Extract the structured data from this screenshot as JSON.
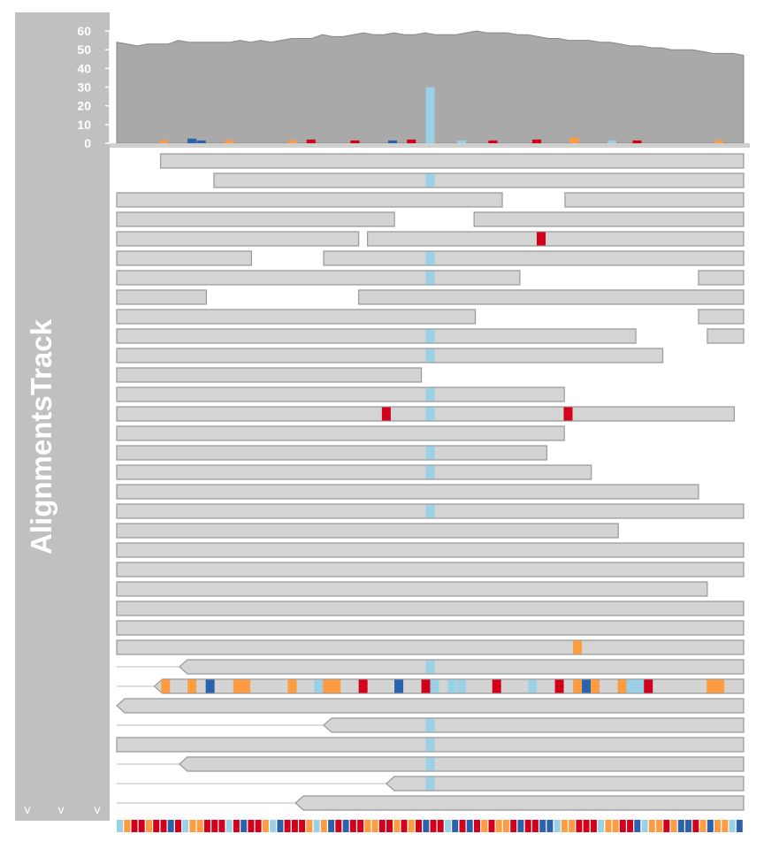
{
  "track_title": "AlignmentsTrack",
  "chevrons": [
    "v",
    "v",
    "v"
  ],
  "colors": {
    "A": "#ff9c41",
    "C": "#2a62ab",
    "G": "#ffa347",
    "T": "#d3001b",
    "mm_light": "#9bd1e6",
    "read_fill": "#d4d4d4",
    "read_stroke": "#999999",
    "coverage": "#a9a9a9",
    "panel": "#c0c0c0"
  },
  "chart_data": {
    "type": "area",
    "title": "",
    "xlabel": "",
    "ylabel": "",
    "ylim": [
      0,
      60
    ],
    "yticks": [
      0,
      10,
      20,
      30,
      40,
      50,
      60
    ],
    "coverage": [
      54,
      53,
      52,
      53,
      53,
      53,
      55,
      54,
      54,
      54,
      54,
      54,
      55,
      54,
      55,
      54,
      55,
      56,
      56,
      56,
      58,
      57,
      57,
      58,
      59,
      58,
      58,
      59,
      58,
      58,
      59,
      58,
      58,
      58,
      59,
      60,
      59,
      59,
      59,
      58,
      58,
      57,
      56,
      56,
      55,
      55,
      55,
      54,
      54,
      53,
      52,
      52,
      51,
      51,
      50,
      50,
      50,
      49,
      48,
      48,
      48,
      47
    ],
    "mismatch_bars": [
      {
        "pos": 0.075,
        "h": 1.5,
        "c": "A"
      },
      {
        "pos": 0.12,
        "h": 2.5,
        "c": "C"
      },
      {
        "pos": 0.135,
        "h": 1.5,
        "c": "C"
      },
      {
        "pos": 0.18,
        "h": 1.5,
        "c": "A"
      },
      {
        "pos": 0.28,
        "h": 1.5,
        "c": "A"
      },
      {
        "pos": 0.31,
        "h": 2,
        "c": "T"
      },
      {
        "pos": 0.38,
        "h": 1.5,
        "c": "T"
      },
      {
        "pos": 0.44,
        "h": 1.5,
        "c": "C"
      },
      {
        "pos": 0.47,
        "h": 2,
        "c": "T"
      },
      {
        "pos": 0.5,
        "h": 30,
        "c": "mm_light"
      },
      {
        "pos": 0.55,
        "h": 1.5,
        "c": "mm_light"
      },
      {
        "pos": 0.6,
        "h": 1.5,
        "c": "T"
      },
      {
        "pos": 0.67,
        "h": 2,
        "c": "T"
      },
      {
        "pos": 0.73,
        "h": 3,
        "c": "A"
      },
      {
        "pos": 0.79,
        "h": 1.5,
        "c": "mm_light"
      },
      {
        "pos": 0.83,
        "h": 1.5,
        "c": "T"
      },
      {
        "pos": 0.96,
        "h": 1.5,
        "c": "A"
      }
    ],
    "reads": [
      {
        "row": 0,
        "x1": 0.07,
        "x2": 1.0,
        "mm": []
      },
      {
        "row": 1,
        "x1": 0.155,
        "x2": 1.0,
        "mm": [
          {
            "p": 0.5,
            "c": "mm_light"
          }
        ]
      },
      {
        "row": 2,
        "x1": 0.0,
        "x2": 0.615,
        "mm": []
      },
      {
        "row": 2,
        "x1": 0.715,
        "x2": 1.0,
        "mm": []
      },
      {
        "row": 3,
        "x1": 0.0,
        "x2": 0.443,
        "mm": []
      },
      {
        "row": 3,
        "x1": 0.57,
        "x2": 1.0,
        "mm": []
      },
      {
        "row": 4,
        "x1": 0.0,
        "x2": 0.386,
        "mm": []
      },
      {
        "row": 4,
        "x1": 0.4,
        "x2": 1.0,
        "mm": [
          {
            "p": 0.677,
            "c": "T"
          }
        ]
      },
      {
        "row": 5,
        "x1": 0.0,
        "x2": 0.215,
        "mm": []
      },
      {
        "row": 5,
        "x1": 0.33,
        "x2": 1.0,
        "mm": [
          {
            "p": 0.5,
            "c": "mm_light"
          }
        ]
      },
      {
        "row": 6,
        "x1": 0.0,
        "x2": 0.643,
        "mm": [
          {
            "p": 0.5,
            "c": "mm_light"
          }
        ]
      },
      {
        "row": 6,
        "x1": 0.928,
        "x2": 1.0,
        "mm": []
      },
      {
        "row": 7,
        "x1": 0.0,
        "x2": 0.143,
        "mm": []
      },
      {
        "row": 7,
        "x1": 0.386,
        "x2": 1.0,
        "mm": []
      },
      {
        "row": 8,
        "x1": 0.0,
        "x2": 0.572,
        "mm": []
      },
      {
        "row": 8,
        "x1": 0.928,
        "x2": 1.0,
        "mm": []
      },
      {
        "row": 9,
        "x1": 0.0,
        "x2": 0.828,
        "mm": [
          {
            "p": 0.5,
            "c": "mm_light"
          }
        ]
      },
      {
        "row": 9,
        "x1": 0.942,
        "x2": 1.0,
        "mm": []
      },
      {
        "row": 10,
        "x1": 0.0,
        "x2": 0.871,
        "mm": [
          {
            "p": 0.5,
            "c": "mm_light"
          }
        ]
      },
      {
        "row": 11,
        "x1": 0.0,
        "x2": 0.486,
        "mm": []
      },
      {
        "row": 12,
        "x1": 0.0,
        "x2": 0.714,
        "mm": [
          {
            "p": 0.5,
            "c": "mm_light"
          }
        ]
      },
      {
        "row": 13,
        "x1": 0.0,
        "x2": 0.985,
        "mm": [
          {
            "p": 0.43,
            "c": "T"
          },
          {
            "p": 0.5,
            "c": "mm_light"
          },
          {
            "p": 0.72,
            "c": "T"
          }
        ]
      },
      {
        "row": 14,
        "x1": 0.0,
        "x2": 0.714,
        "mm": []
      },
      {
        "row": 15,
        "x1": 0.0,
        "x2": 0.686,
        "mm": [
          {
            "p": 0.5,
            "c": "mm_light"
          }
        ]
      },
      {
        "row": 16,
        "x1": 0.0,
        "x2": 0.757,
        "mm": [
          {
            "p": 0.5,
            "c": "mm_light"
          }
        ]
      },
      {
        "row": 17,
        "x1": 0.0,
        "x2": 0.928,
        "mm": []
      },
      {
        "row": 18,
        "x1": 0.0,
        "x2": 1.0,
        "mm": [
          {
            "p": 0.5,
            "c": "mm_light"
          }
        ]
      },
      {
        "row": 19,
        "x1": 0.0,
        "x2": 0.8,
        "mm": []
      },
      {
        "row": 20,
        "x1": 0.0,
        "x2": 1.0,
        "mm": []
      },
      {
        "row": 21,
        "x1": 0.0,
        "x2": 1.0,
        "mm": []
      },
      {
        "row": 22,
        "x1": 0.0,
        "x2": 0.942,
        "mm": []
      },
      {
        "row": 23,
        "x1": 0.0,
        "x2": 1.0,
        "mm": []
      },
      {
        "row": 24,
        "x1": 0.0,
        "x2": 1.0,
        "mm": []
      },
      {
        "row": 25,
        "x1": 0.0,
        "x2": 1.0,
        "mm": [
          {
            "p": 0.735,
            "c": "A"
          }
        ]
      },
      {
        "row": 26,
        "x1": 0.1,
        "x2": 1.0,
        "dir": "left",
        "tail": 0.0,
        "mm": [
          {
            "p": 0.5,
            "c": "mm_light"
          }
        ]
      },
      {
        "row": 27,
        "x1": 0.06,
        "x2": 1.0,
        "dir": "left",
        "tail": 0.0,
        "mm": [
          {
            "p": 0.078,
            "c": "A"
          },
          {
            "p": 0.12,
            "c": "A"
          },
          {
            "p": 0.149,
            "c": "C"
          },
          {
            "p": 0.193,
            "c": "A"
          },
          {
            "p": 0.206,
            "c": "A"
          },
          {
            "p": 0.28,
            "c": "A"
          },
          {
            "p": 0.322,
            "c": "mm_light"
          },
          {
            "p": 0.336,
            "c": "A"
          },
          {
            "p": 0.35,
            "c": "A"
          },
          {
            "p": 0.393,
            "c": "T"
          },
          {
            "p": 0.45,
            "c": "C"
          },
          {
            "p": 0.493,
            "c": "T"
          },
          {
            "p": 0.507,
            "c": "mm_light"
          },
          {
            "p": 0.535,
            "c": "mm_light"
          },
          {
            "p": 0.55,
            "c": "mm_light"
          },
          {
            "p": 0.606,
            "c": "T"
          },
          {
            "p": 0.663,
            "c": "mm_light"
          },
          {
            "p": 0.706,
            "c": "T"
          },
          {
            "p": 0.735,
            "c": "A"
          },
          {
            "p": 0.749,
            "c": "C"
          },
          {
            "p": 0.763,
            "c": "A"
          },
          {
            "p": 0.806,
            "c": "A"
          },
          {
            "p": 0.82,
            "c": "mm_light"
          },
          {
            "p": 0.834,
            "c": "mm_light"
          },
          {
            "p": 0.848,
            "c": "T"
          },
          {
            "p": 0.948,
            "c": "A"
          },
          {
            "p": 0.962,
            "c": "A"
          }
        ]
      },
      {
        "row": 28,
        "x1": 0.0,
        "x2": 1.0,
        "dir": "left",
        "mm": []
      },
      {
        "row": 29,
        "x1": 0.33,
        "x2": 1.0,
        "dir": "left",
        "tail": 0.0,
        "mm": [
          {
            "p": 0.5,
            "c": "mm_light"
          }
        ]
      },
      {
        "row": 30,
        "x1": 0.0,
        "x2": 1.0,
        "mm": [
          {
            "p": 0.5,
            "c": "mm_light"
          }
        ]
      },
      {
        "row": 31,
        "x1": 0.1,
        "x2": 1.0,
        "dir": "left",
        "tail": 0.0,
        "mm": [
          {
            "p": 0.5,
            "c": "mm_light"
          }
        ]
      },
      {
        "row": 32,
        "x1": 0.43,
        "x2": 1.0,
        "dir": "left",
        "tail": 0.0,
        "mm": [
          {
            "p": 0.5,
            "c": "mm_light"
          }
        ]
      },
      {
        "row": 33,
        "x1": 0.285,
        "x2": 1.0,
        "dir": "left",
        "tail": 0.0,
        "mm": []
      }
    ],
    "sequence": "TTTTTTTCTCTTTTTTTCTTTTCTTTTTTCTCTTCTTTTTTTCTTTCTCTTTTTTCTTCCCCTTTTCCCTTCTCTTTCCTCCTTCC",
    "sequence_colors_override": {
      "T_light": [
        0,
        1,
        4,
        9,
        10,
        11,
        15,
        20,
        21,
        26,
        27,
        28,
        34,
        35,
        38,
        40,
        45,
        50,
        52,
        53,
        60,
        61,
        62,
        66,
        67,
        68,
        72,
        73,
        74,
        76,
        80,
        82,
        83,
        84
      ]
    }
  }
}
